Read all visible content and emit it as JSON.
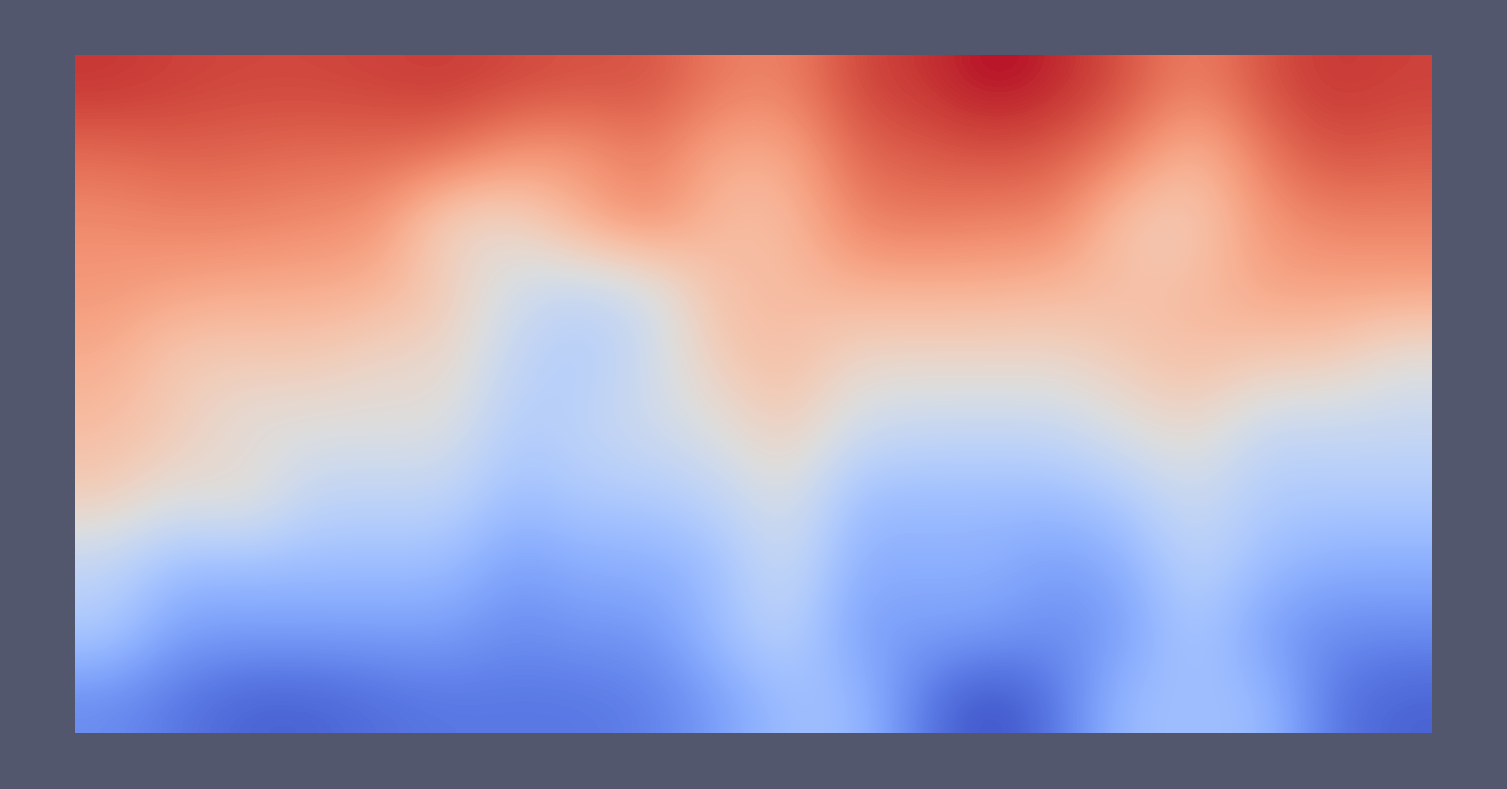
{
  "chart_data": {
    "type": "heatmap",
    "tick_labels": false,
    "cells": [
      [
        0.95,
        0.93,
        0.92,
        0.92,
        0.93,
        0.94,
        0.92,
        0.9,
        0.9,
        0.82,
        0.8,
        0.92,
        0.95,
        1.0,
        0.97,
        0.9,
        0.8,
        0.9,
        0.95,
        0.93
      ],
      [
        0.85,
        0.87,
        0.86,
        0.85,
        0.85,
        0.84,
        0.75,
        0.75,
        0.82,
        0.7,
        0.7,
        0.86,
        0.88,
        0.9,
        0.88,
        0.8,
        0.65,
        0.82,
        0.9,
        0.88
      ],
      [
        0.78,
        0.8,
        0.8,
        0.78,
        0.76,
        0.55,
        0.55,
        0.7,
        0.78,
        0.65,
        0.65,
        0.8,
        0.82,
        0.8,
        0.8,
        0.6,
        0.6,
        0.75,
        0.8,
        0.8
      ],
      [
        0.75,
        0.72,
        0.7,
        0.7,
        0.68,
        0.6,
        0.45,
        0.4,
        0.45,
        0.65,
        0.65,
        0.68,
        0.68,
        0.68,
        0.66,
        0.65,
        0.65,
        0.72,
        0.72,
        0.72
      ],
      [
        0.7,
        0.6,
        0.6,
        0.6,
        0.55,
        0.55,
        0.4,
        0.35,
        0.45,
        0.6,
        0.65,
        0.55,
        0.55,
        0.55,
        0.55,
        0.6,
        0.65,
        0.6,
        0.6,
        0.5
      ],
      [
        0.65,
        0.6,
        0.5,
        0.5,
        0.5,
        0.5,
        0.35,
        0.4,
        0.45,
        0.5,
        0.6,
        0.45,
        0.42,
        0.42,
        0.42,
        0.5,
        0.55,
        0.42,
        0.42,
        0.42
      ],
      [
        0.6,
        0.5,
        0.55,
        0.4,
        0.4,
        0.4,
        0.3,
        0.35,
        0.35,
        0.4,
        0.5,
        0.3,
        0.3,
        0.3,
        0.3,
        0.35,
        0.45,
        0.35,
        0.35,
        0.35
      ],
      [
        0.4,
        0.3,
        0.3,
        0.3,
        0.3,
        0.3,
        0.2,
        0.25,
        0.25,
        0.3,
        0.45,
        0.25,
        0.25,
        0.25,
        0.2,
        0.25,
        0.4,
        0.3,
        0.25,
        0.25
      ],
      [
        0.35,
        0.2,
        0.2,
        0.2,
        0.2,
        0.2,
        0.15,
        0.18,
        0.18,
        0.3,
        0.4,
        0.2,
        0.2,
        0.2,
        0.15,
        0.2,
        0.35,
        0.2,
        0.15,
        0.15
      ],
      [
        0.15,
        0.1,
        0.05,
        0.05,
        0.08,
        0.1,
        0.1,
        0.1,
        0.12,
        0.2,
        0.3,
        0.3,
        0.1,
        0.0,
        0.1,
        0.3,
        0.3,
        0.3,
        0.1,
        0.05
      ]
    ]
  }
}
